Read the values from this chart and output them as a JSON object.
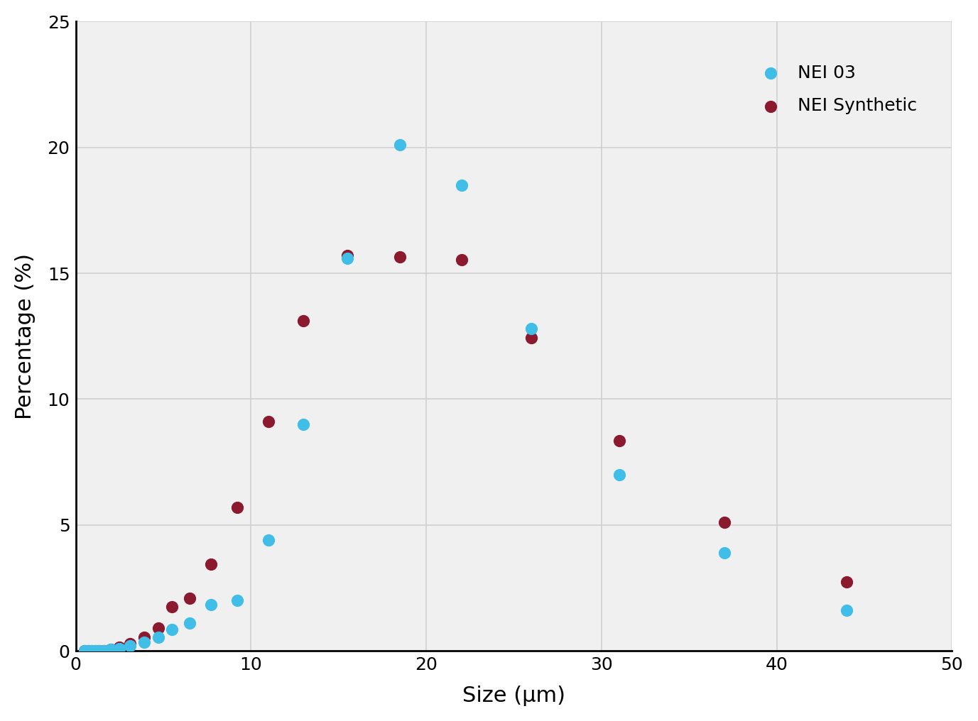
{
  "nei03_x": [
    0.5,
    0.7,
    0.9,
    1.1,
    1.3,
    1.6,
    2.0,
    2.5,
    3.1,
    3.9,
    4.7,
    5.5,
    6.5,
    7.7,
    9.2,
    11.0,
    13.0,
    15.5,
    18.5,
    22.0,
    26.0,
    31.0,
    37.0,
    44.0
  ],
  "nei03_y": [
    0.0,
    0.0,
    0.0,
    0.0,
    0.0,
    0.0,
    0.05,
    0.1,
    0.2,
    0.35,
    0.55,
    0.85,
    1.1,
    1.85,
    2.0,
    4.4,
    9.0,
    15.6,
    20.1,
    18.5,
    12.8,
    7.0,
    3.9,
    1.6
  ],
  "nei_synth_x": [
    0.5,
    0.7,
    0.9,
    1.1,
    1.3,
    1.6,
    2.0,
    2.5,
    3.1,
    3.9,
    4.7,
    5.5,
    6.5,
    7.7,
    9.2,
    11.0,
    13.0,
    15.5,
    18.5,
    22.0,
    26.0,
    31.0,
    37.0,
    44.0
  ],
  "nei_synth_y": [
    0.0,
    0.0,
    0.0,
    0.0,
    0.0,
    0.0,
    0.05,
    0.15,
    0.3,
    0.55,
    0.9,
    1.75,
    2.1,
    3.45,
    5.7,
    9.1,
    13.1,
    15.7,
    15.65,
    15.55,
    12.45,
    8.35,
    5.1,
    2.75
  ],
  "nei03_color": "#41BEE8",
  "nei_synth_color": "#8B1A2F",
  "xlabel": "Size (μm)",
  "ylabel": "Percentage (%)",
  "xlim": [
    0,
    50
  ],
  "ylim": [
    0,
    25
  ],
  "xticks": [
    0,
    10,
    20,
    30,
    40,
    50
  ],
  "yticks": [
    0,
    5,
    10,
    15,
    20,
    25
  ],
  "legend_labels": [
    "NEI 03",
    "NEI Synthetic"
  ],
  "grid_color": "#d0d0d0",
  "marker_size": 130,
  "bg_color": "#ffffff",
  "plot_bg_color": "#f0f0f0"
}
